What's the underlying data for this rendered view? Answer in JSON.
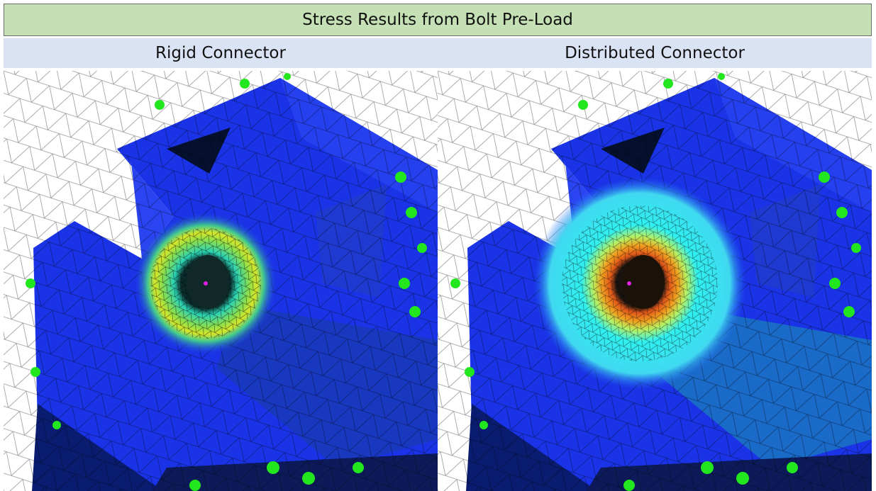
{
  "header": {
    "title": "Stress Results from Bolt Pre-Load"
  },
  "columns": [
    {
      "label": "Rigid Connector"
    },
    {
      "label": "Distributed Connector"
    }
  ]
}
